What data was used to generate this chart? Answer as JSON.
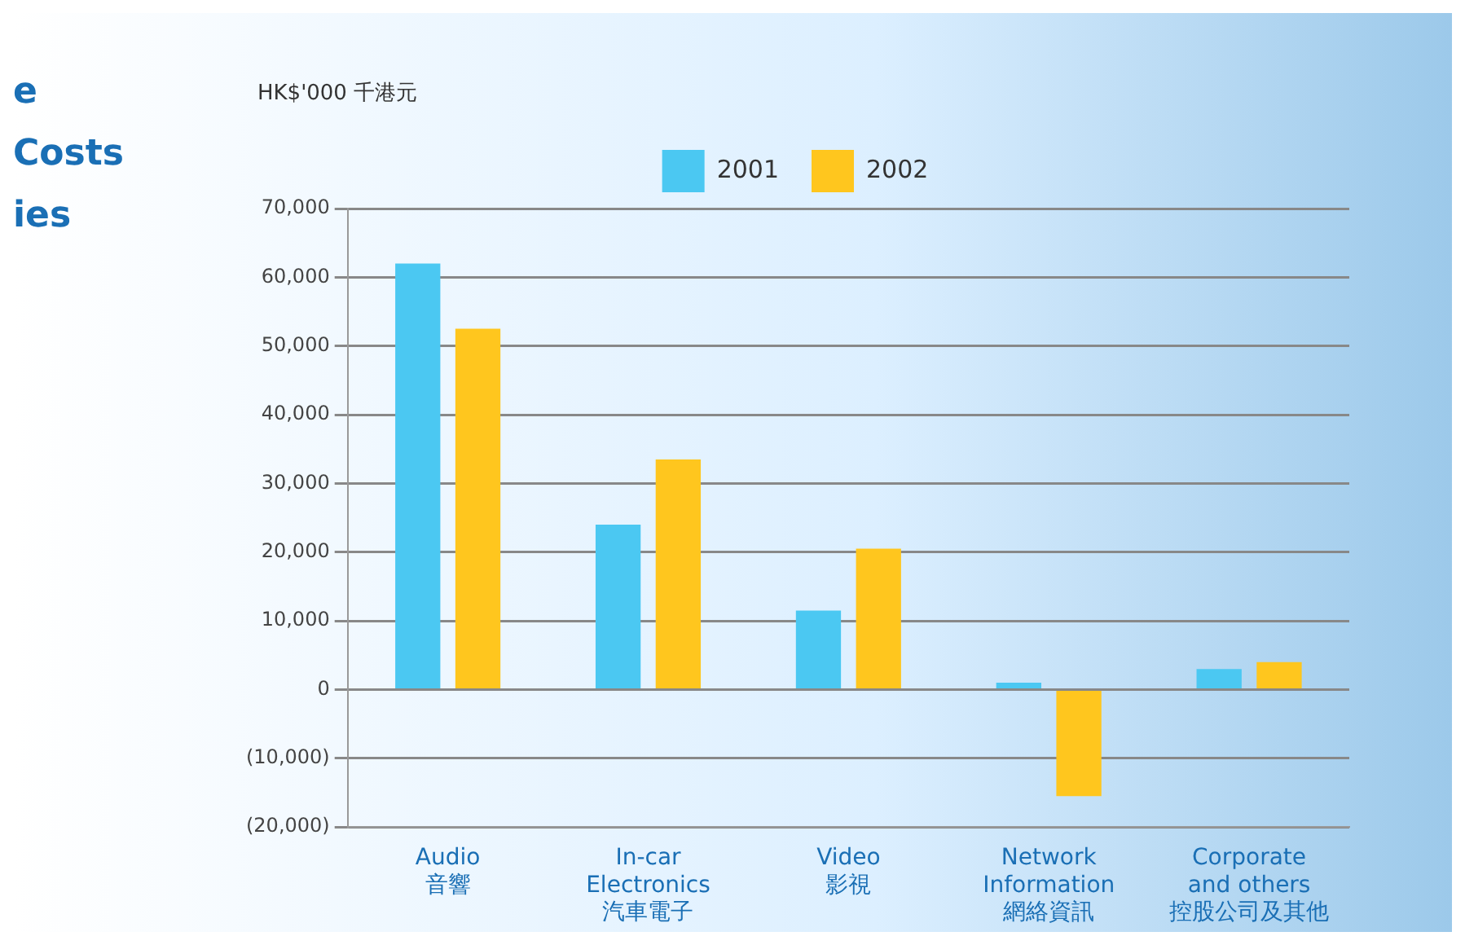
{
  "chart_data": {
    "type": "bar",
    "title": "e\nCosts\nies",
    "ylabel": "HK$'000 千港元",
    "categories": [
      "Audio\n音響",
      "In-car\nElectronics\n汽車電子",
      "Video\n影視",
      "Network\nInformation\n網絡資訊",
      "Corporate\nand others\n控股公司及其他"
    ],
    "series": [
      {
        "name": "2001",
        "color": "#4bc8f2",
        "values": [
          62000,
          24000,
          11500,
          1000,
          3000
        ]
      },
      {
        "name": "2002",
        "color": "#ffc61e",
        "values": [
          52500,
          33500,
          20500,
          -15500,
          4000
        ]
      }
    ],
    "ylim": [
      -20000,
      70000
    ],
    "yticks": [
      {
        "value": -20000,
        "label": "(20,000)"
      },
      {
        "value": -10000,
        "label": "(10,000)"
      },
      {
        "value": 0,
        "label": "0"
      },
      {
        "value": 10000,
        "label": "10,000"
      },
      {
        "value": 20000,
        "label": "20,000"
      },
      {
        "value": 30000,
        "label": "30,000"
      },
      {
        "value": 40000,
        "label": "40,000"
      },
      {
        "value": 50000,
        "label": "50,000"
      },
      {
        "value": 60000,
        "label": "60,000"
      },
      {
        "value": 70000,
        "label": "70,000"
      }
    ],
    "grid": "y",
    "legend": "top"
  }
}
